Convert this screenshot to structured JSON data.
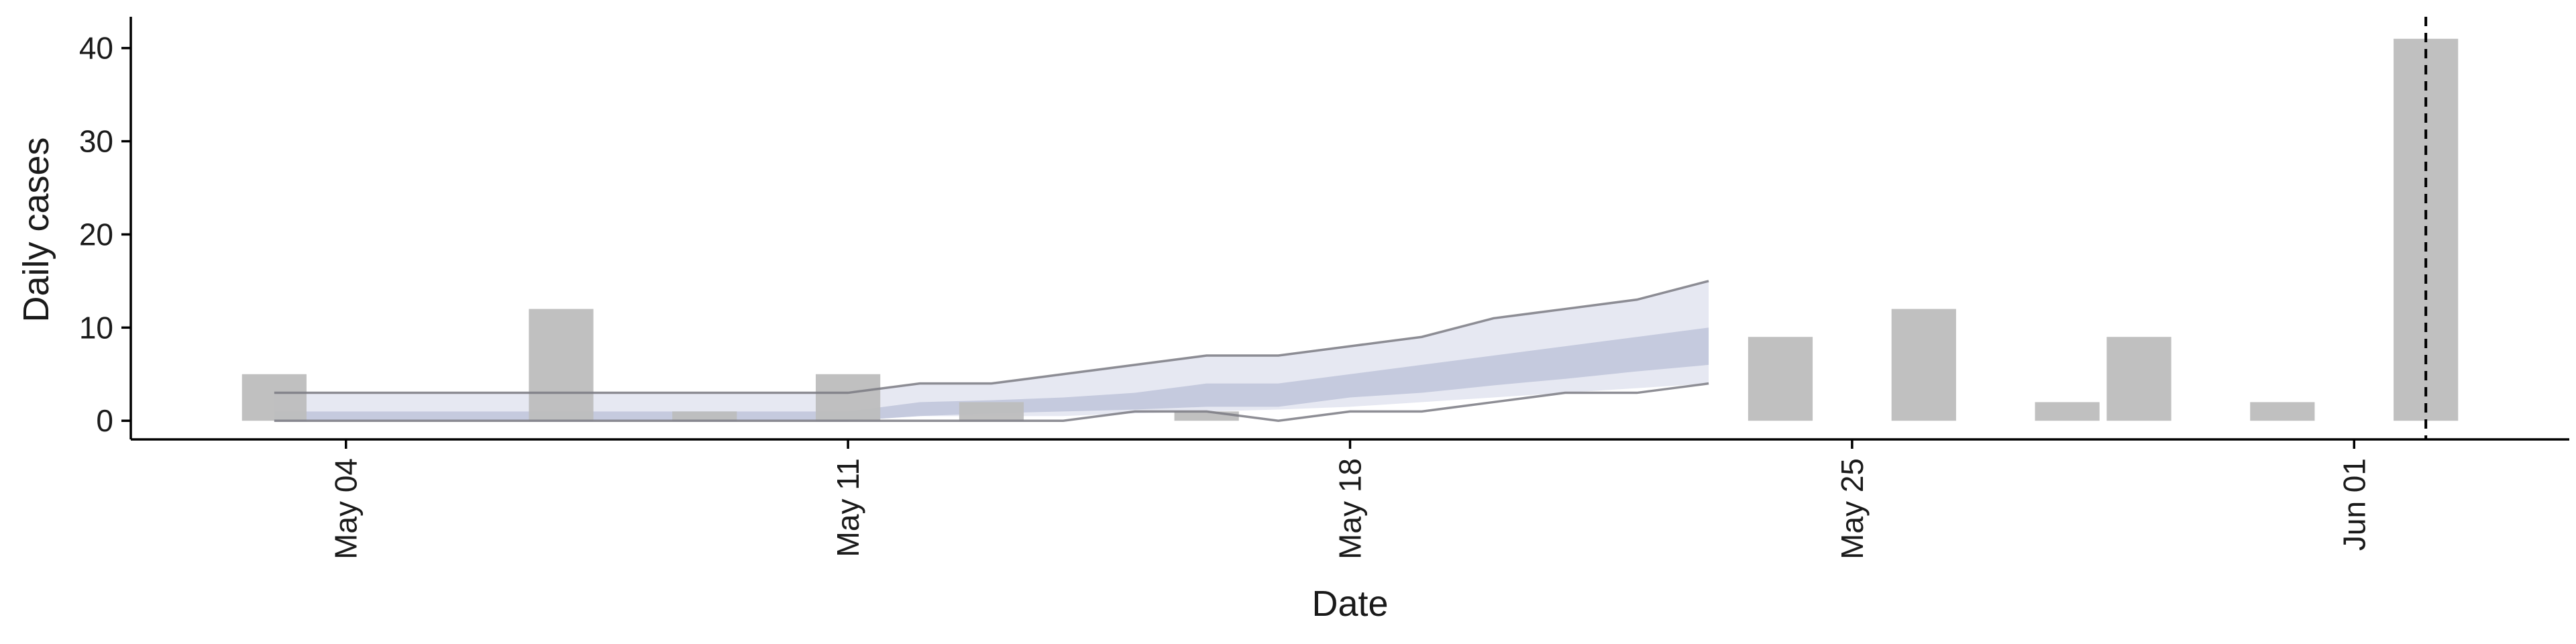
{
  "chart_data": {
    "type": "bar",
    "xlabel": "Date",
    "ylabel": "Daily cases",
    "xlim": [
      "2025-05-01",
      "2025-06-04"
    ],
    "ylim": [
      -2,
      43
    ],
    "x_ticks": [
      {
        "date": "2025-05-04",
        "label": "May 04"
      },
      {
        "date": "2025-05-11",
        "label": "May 11"
      },
      {
        "date": "2025-05-18",
        "label": "May 18"
      },
      {
        "date": "2025-05-25",
        "label": "May 25"
      },
      {
        "date": "2025-06-01",
        "label": "Jun 01"
      }
    ],
    "y_ticks": [
      0,
      10,
      20,
      30,
      40
    ],
    "grid": false,
    "bar_color": "#bdbdbd",
    "bars": [
      {
        "date": "2025-05-03",
        "value": 5
      },
      {
        "date": "2025-05-07",
        "value": 12
      },
      {
        "date": "2025-05-09",
        "value": 1
      },
      {
        "date": "2025-05-11",
        "value": 5
      },
      {
        "date": "2025-05-13",
        "value": 2
      },
      {
        "date": "2025-05-16",
        "value": 1
      },
      {
        "date": "2025-05-24",
        "value": 9
      },
      {
        "date": "2025-05-26",
        "value": 12
      },
      {
        "date": "2025-05-28",
        "value": 2
      },
      {
        "date": "2025-05-29",
        "value": 9
      },
      {
        "date": "2025-05-31",
        "value": 2
      },
      {
        "date": "2025-06-02",
        "value": 41
      }
    ],
    "forecast_bands": {
      "outer_color": "#e6e8f2",
      "inner_color": "#c5cade",
      "dates": [
        "2025-05-03",
        "2025-05-11",
        "2025-05-12",
        "2025-05-13",
        "2025-05-14",
        "2025-05-15",
        "2025-05-16",
        "2025-05-17",
        "2025-05-18",
        "2025-05-19",
        "2025-05-20",
        "2025-05-21",
        "2025-05-22",
        "2025-05-23"
      ],
      "outer_lower": [
        0,
        0,
        0.5,
        0.5,
        0.5,
        0.8,
        1,
        1.2,
        1.5,
        2,
        2.5,
        3,
        3.5,
        4
      ],
      "outer_upper": [
        3,
        3,
        4,
        4,
        5,
        6,
        7,
        7,
        8,
        9,
        11,
        12,
        13,
        15
      ],
      "inner_lower": [
        0,
        0,
        0.5,
        0.8,
        1,
        1.2,
        1.5,
        1.5,
        2.5,
        3,
        3.8,
        4.5,
        5.3,
        6
      ],
      "inner_upper": [
        1,
        1,
        2,
        2.2,
        2.5,
        3,
        4,
        4,
        5,
        6,
        7,
        8,
        9,
        10
      ]
    },
    "observed_lines": {
      "color": "#7a7a82",
      "series": [
        {
          "dates": [
            "2025-05-03",
            "2025-05-11",
            "2025-05-12",
            "2025-05-13",
            "2025-05-14",
            "2025-05-15",
            "2025-05-16",
            "2025-05-17",
            "2025-05-18",
            "2025-05-19",
            "2025-05-20",
            "2025-05-21",
            "2025-05-22",
            "2025-05-23"
          ],
          "values": [
            3,
            3,
            4,
            4,
            5,
            6,
            7,
            7,
            8,
            9,
            11,
            12,
            13,
            15
          ]
        },
        {
          "dates": [
            "2025-05-03",
            "2025-05-14",
            "2025-05-15",
            "2025-05-16",
            "2025-05-17",
            "2025-05-18",
            "2025-05-19",
            "2025-05-20",
            "2025-05-21",
            "2025-05-22",
            "2025-05-23"
          ],
          "values": [
            0,
            0,
            1,
            1,
            0,
            1,
            1,
            2,
            3,
            3,
            4
          ]
        }
      ]
    },
    "reference_line": {
      "date": "2025-06-02",
      "style": "dashed",
      "color": "#000000"
    }
  }
}
